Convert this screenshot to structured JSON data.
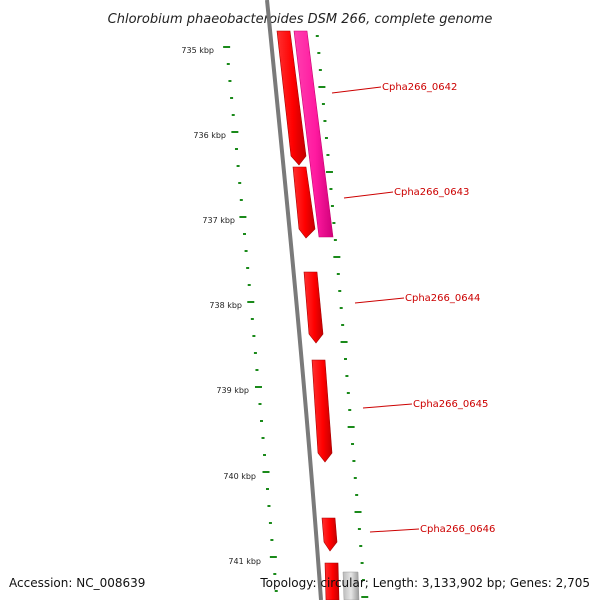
{
  "title": "Chlorobium phaeobacteroides DSM 266, complete genome",
  "footer": {
    "accession": "Accession: NC_008639",
    "summary": "Topology: circular; Length: 3,133,902 bp; Genes: 2,705"
  },
  "colors": {
    "gene_red": "#ff0000",
    "gene_dark_red": "#b00000",
    "gene_pink": "#ff1aa0",
    "tick_green": "#1a8a1a",
    "backbone_gray": "#808080",
    "label_red": "#cc0000"
  },
  "scale_ticks": [
    {
      "label": "735 kbp",
      "kbp": 735
    },
    {
      "label": "736 kbp",
      "kbp": 736
    },
    {
      "label": "737 kbp",
      "kbp": 737
    },
    {
      "label": "738 kbp",
      "kbp": 738
    },
    {
      "label": "739 kbp",
      "kbp": 739
    },
    {
      "label": "740 kbp",
      "kbp": 740
    },
    {
      "label": "741 kbp",
      "kbp": 741
    }
  ],
  "genes": [
    {
      "label": "Cpha266_0642"
    },
    {
      "label": "Cpha266_0643"
    },
    {
      "label": "Cpha266_0644"
    },
    {
      "label": "Cpha266_0645"
    },
    {
      "label": "Cpha266_0646"
    }
  ]
}
